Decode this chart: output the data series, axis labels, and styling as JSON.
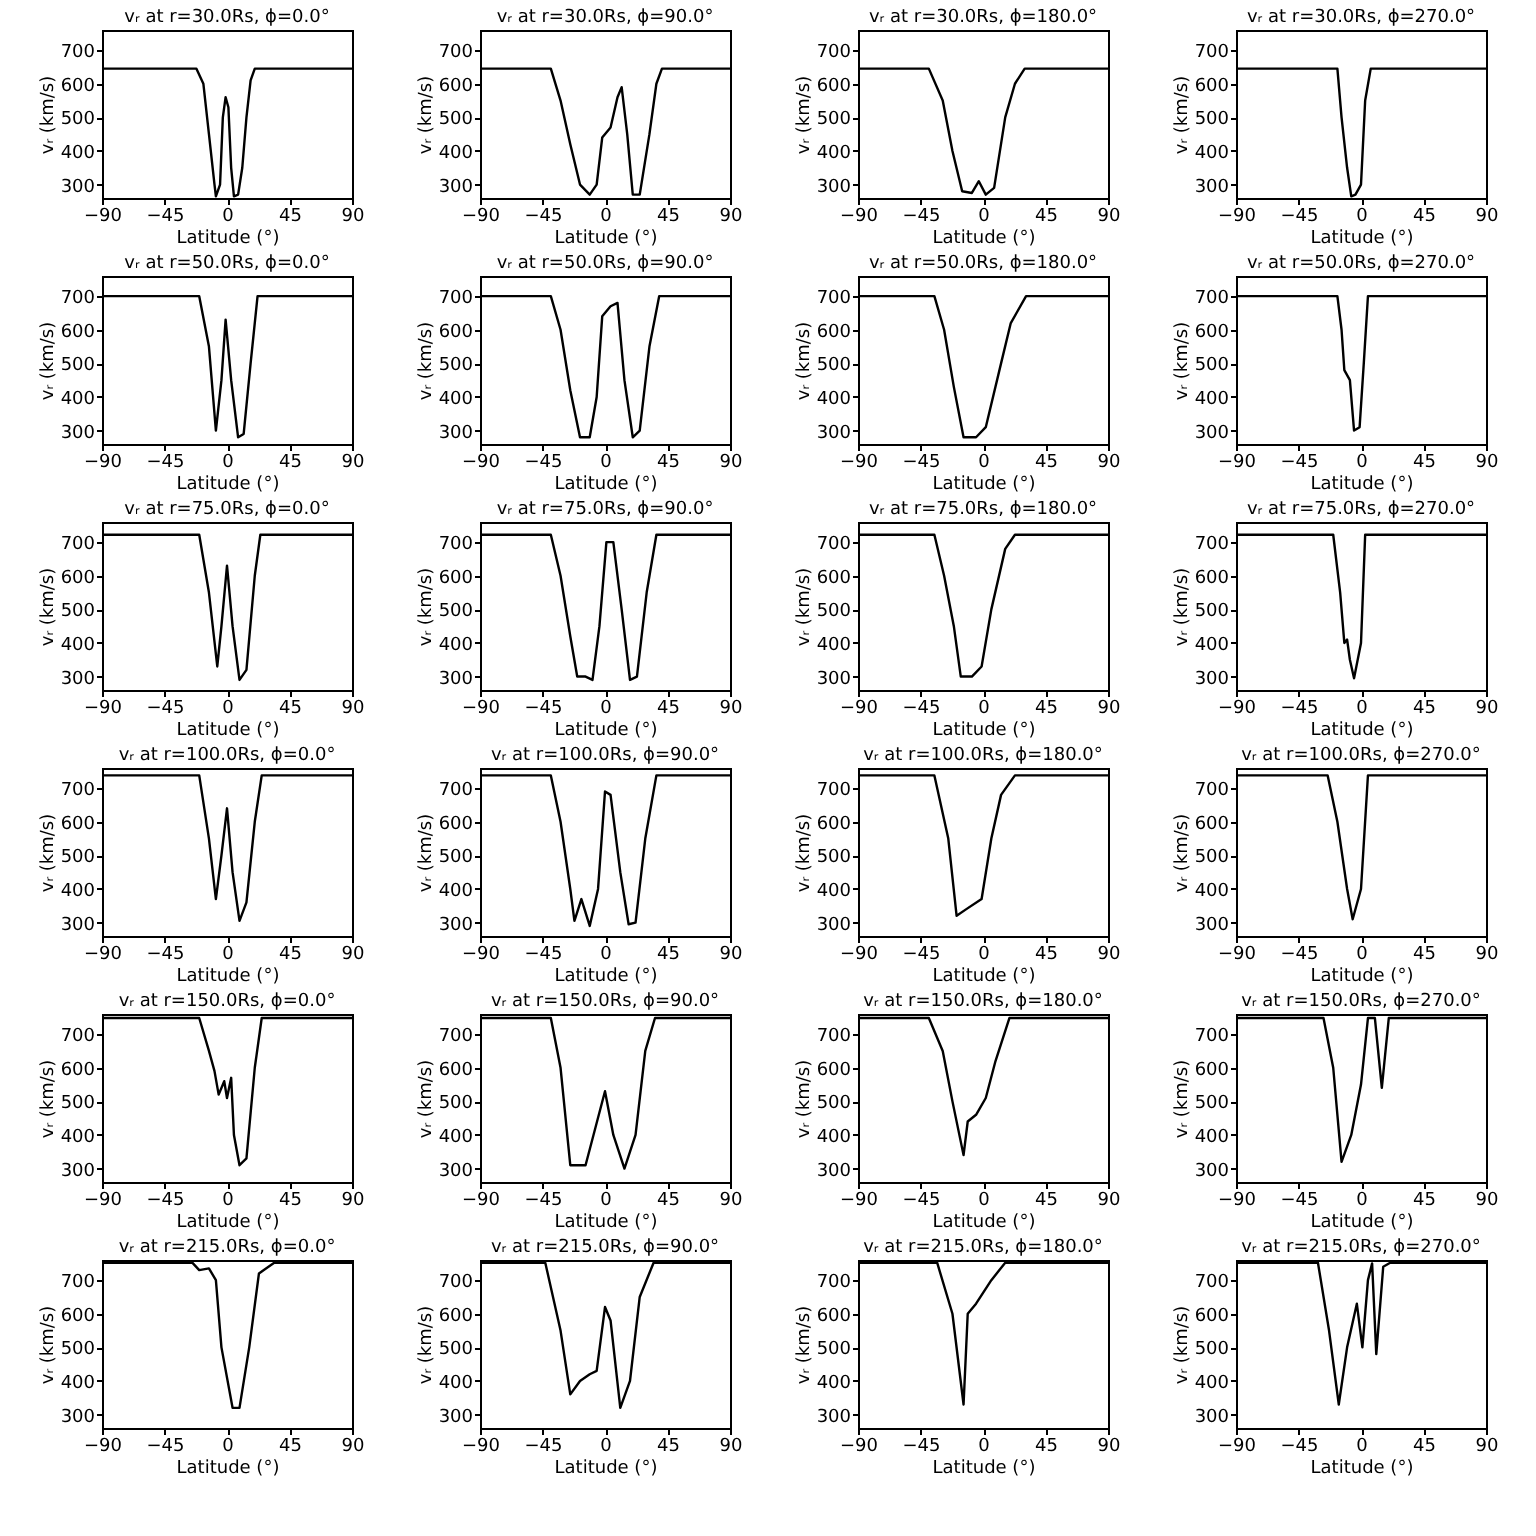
{
  "chart_data": [
    {
      "type": "line",
      "title": "vᵣ at r=30.0Rs, ϕ=0.0°",
      "xlabel": "Latitude (°)",
      "ylabel": "vᵣ (km/s)",
      "color": "#000000",
      "xlim": [
        -90,
        90
      ],
      "ylim": [
        260,
        760
      ],
      "xticks": [
        -90,
        -45,
        0,
        45,
        90
      ],
      "yticks": [
        300,
        400,
        500,
        600,
        700
      ],
      "x": [
        -90,
        -22,
        -17,
        -13,
        -9,
        -8,
        -5,
        -3,
        -1,
        1,
        3,
        5,
        8,
        11,
        14,
        17,
        20,
        90
      ],
      "values": [
        645,
        645,
        600,
        450,
        300,
        265,
        300,
        500,
        560,
        530,
        350,
        265,
        270,
        350,
        500,
        610,
        645,
        645
      ]
    },
    {
      "type": "line",
      "title": "vᵣ at r=30.0Rs, ϕ=90.0°",
      "xlabel": "Latitude (°)",
      "ylabel": "vᵣ (km/s)",
      "color": "#000000",
      "xlim": [
        -90,
        90
      ],
      "ylim": [
        260,
        760
      ],
      "xticks": [
        -90,
        -45,
        0,
        45,
        90
      ],
      "yticks": [
        300,
        400,
        500,
        600,
        700
      ],
      "x": [
        -90,
        -39,
        -32,
        -25,
        -18,
        -11,
        -6,
        -2,
        4,
        9,
        12,
        16,
        20,
        25,
        32,
        37,
        41,
        90
      ],
      "values": [
        645,
        645,
        550,
        420,
        300,
        270,
        300,
        440,
        470,
        560,
        590,
        450,
        270,
        270,
        450,
        600,
        645,
        645
      ]
    },
    {
      "type": "line",
      "title": "vᵣ at r=30.0Rs, ϕ=180.0°",
      "xlabel": "Latitude (°)",
      "ylabel": "vᵣ (km/s)",
      "color": "#000000",
      "xlim": [
        -90,
        90
      ],
      "ylim": [
        260,
        760
      ],
      "xticks": [
        -90,
        -45,
        0,
        45,
        90
      ],
      "yticks": [
        300,
        400,
        500,
        600,
        700
      ],
      "x": [
        -90,
        -39,
        -29,
        -22,
        -15,
        -8,
        -3,
        2,
        8,
        16,
        23,
        30,
        90
      ],
      "values": [
        645,
        645,
        550,
        400,
        280,
        275,
        310,
        270,
        290,
        500,
        600,
        645,
        645
      ]
    },
    {
      "type": "line",
      "title": "vᵣ at r=30.0Rs, ϕ=270.0°",
      "xlabel": "Latitude (°)",
      "ylabel": "vᵣ (km/s)",
      "color": "#000000",
      "xlim": [
        -90,
        90
      ],
      "ylim": [
        260,
        760
      ],
      "xticks": [
        -90,
        -45,
        0,
        45,
        90
      ],
      "yticks": [
        300,
        400,
        500,
        600,
        700
      ],
      "x": [
        -90,
        -17,
        -14,
        -10,
        -7,
        -4,
        0,
        3,
        7,
        90
      ],
      "values": [
        645,
        645,
        500,
        350,
        265,
        270,
        300,
        550,
        645,
        645
      ]
    },
    {
      "type": "line",
      "title": "vᵣ at r=50.0Rs, ϕ=0.0°",
      "xlabel": "Latitude (°)",
      "ylabel": "vᵣ (km/s)",
      "color": "#000000",
      "xlim": [
        -90,
        90
      ],
      "ylim": [
        260,
        760
      ],
      "xticks": [
        -90,
        -45,
        0,
        45,
        90
      ],
      "yticks": [
        300,
        400,
        500,
        600,
        700
      ],
      "x": [
        -90,
        -20,
        -13,
        -8,
        -4,
        -1,
        3,
        8,
        12,
        17,
        22,
        90
      ],
      "values": [
        700,
        700,
        550,
        300,
        450,
        630,
        450,
        280,
        290,
        500,
        700,
        700
      ]
    },
    {
      "type": "line",
      "title": "vᵣ at r=50.0Rs, ϕ=90.0°",
      "xlabel": "Latitude (°)",
      "ylabel": "vᵣ (km/s)",
      "color": "#000000",
      "xlim": [
        -90,
        90
      ],
      "ylim": [
        260,
        760
      ],
      "xticks": [
        -90,
        -45,
        0,
        45,
        90
      ],
      "yticks": [
        300,
        400,
        500,
        600,
        700
      ],
      "x": [
        -90,
        -39,
        -32,
        -25,
        -18,
        -11,
        -6,
        -2,
        4,
        9,
        14,
        20,
        25,
        32,
        39,
        90
      ],
      "values": [
        700,
        700,
        600,
        420,
        280,
        280,
        400,
        640,
        670,
        680,
        450,
        280,
        300,
        550,
        700,
        700
      ]
    },
    {
      "type": "line",
      "title": "vᵣ at r=50.0Rs, ϕ=180.0°",
      "xlabel": "Latitude (°)",
      "ylabel": "vᵣ (km/s)",
      "color": "#000000",
      "xlim": [
        -90,
        90
      ],
      "ylim": [
        260,
        760
      ],
      "xticks": [
        -90,
        -45,
        0,
        45,
        90
      ],
      "yticks": [
        300,
        400,
        500,
        600,
        700
      ],
      "x": [
        -90,
        -35,
        -28,
        -21,
        -14,
        -5,
        2,
        13,
        20,
        31,
        90
      ],
      "values": [
        700,
        700,
        600,
        430,
        280,
        280,
        310,
        500,
        620,
        700,
        700
      ]
    },
    {
      "type": "line",
      "title": "vᵣ at r=50.0Rs, ϕ=270.0°",
      "xlabel": "Latitude (°)",
      "ylabel": "vᵣ (km/s)",
      "color": "#000000",
      "xlim": [
        -90,
        90
      ],
      "ylim": [
        260,
        760
      ],
      "xticks": [
        -90,
        -45,
        0,
        45,
        90
      ],
      "yticks": [
        300,
        400,
        500,
        600,
        700
      ],
      "x": [
        -90,
        -17,
        -14,
        -12,
        -8,
        -5,
        -1,
        2,
        5,
        90
      ],
      "values": [
        700,
        700,
        600,
        480,
        450,
        300,
        310,
        500,
        700,
        700
      ]
    },
    {
      "type": "line",
      "title": "vᵣ at r=75.0Rs, ϕ=0.0°",
      "xlabel": "Latitude (°)",
      "ylabel": "vᵣ (km/s)",
      "color": "#000000",
      "xlim": [
        -90,
        90
      ],
      "ylim": [
        260,
        760
      ],
      "xticks": [
        -90,
        -45,
        0,
        45,
        90
      ],
      "yticks": [
        300,
        400,
        500,
        600,
        700
      ],
      "x": [
        -90,
        -20,
        -13,
        -7,
        -4,
        0,
        4,
        9,
        14,
        20,
        24,
        90
      ],
      "values": [
        722,
        722,
        550,
        330,
        450,
        630,
        450,
        290,
        320,
        600,
        722,
        722
      ]
    },
    {
      "type": "line",
      "title": "vᵣ at r=75.0Rs, ϕ=90.0°",
      "xlabel": "Latitude (°)",
      "ylabel": "vᵣ (km/s)",
      "color": "#000000",
      "xlim": [
        -90,
        90
      ],
      "ylim": [
        260,
        760
      ],
      "xticks": [
        -90,
        -45,
        0,
        45,
        90
      ],
      "yticks": [
        300,
        400,
        500,
        600,
        700
      ],
      "x": [
        -90,
        -39,
        -32,
        -25,
        -20,
        -14,
        -9,
        -4,
        1,
        6,
        12,
        18,
        23,
        30,
        37,
        90
      ],
      "values": [
        722,
        722,
        600,
        420,
        300,
        300,
        290,
        450,
        700,
        700,
        500,
        290,
        300,
        550,
        722,
        722
      ]
    },
    {
      "type": "line",
      "title": "vᵣ at r=75.0Rs, ϕ=180.0°",
      "xlabel": "Latitude (°)",
      "ylabel": "vᵣ (km/s)",
      "color": "#000000",
      "xlim": [
        -90,
        90
      ],
      "ylim": [
        260,
        760
      ],
      "xticks": [
        -90,
        -45,
        0,
        45,
        90
      ],
      "yticks": [
        300,
        400,
        500,
        600,
        700
      ],
      "x": [
        -90,
        -35,
        -28,
        -21,
        -16,
        -8,
        -1,
        6,
        16,
        23,
        90
      ],
      "values": [
        722,
        722,
        600,
        450,
        300,
        300,
        330,
        500,
        680,
        722,
        722
      ]
    },
    {
      "type": "line",
      "title": "vᵣ at r=75.0Rs, ϕ=270.0°",
      "xlabel": "Latitude (°)",
      "ylabel": "vᵣ (km/s)",
      "color": "#000000",
      "xlim": [
        -90,
        90
      ],
      "ylim": [
        260,
        760
      ],
      "xticks": [
        -90,
        -45,
        0,
        45,
        90
      ],
      "yticks": [
        300,
        400,
        500,
        600,
        700
      ],
      "x": [
        -90,
        -20,
        -15,
        -12,
        -10,
        -8,
        -5,
        0,
        3,
        90
      ],
      "values": [
        722,
        722,
        550,
        400,
        410,
        350,
        295,
        400,
        722,
        722
      ]
    },
    {
      "type": "line",
      "title": "vᵣ at r=100.0Rs, ϕ=0.0°",
      "xlabel": "Latitude (°)",
      "ylabel": "vᵣ (km/s)",
      "color": "#000000",
      "xlim": [
        -90,
        90
      ],
      "ylim": [
        260,
        760
      ],
      "xticks": [
        -90,
        -45,
        0,
        45,
        90
      ],
      "yticks": [
        300,
        400,
        500,
        600,
        700
      ],
      "x": [
        -90,
        -20,
        -13,
        -8,
        -4,
        0,
        4,
        9,
        14,
        20,
        25,
        90
      ],
      "values": [
        738,
        738,
        550,
        370,
        500,
        640,
        450,
        305,
        360,
        600,
        738,
        738
      ]
    },
    {
      "type": "line",
      "title": "vᵣ at r=100.0Rs, ϕ=90.0°",
      "xlabel": "Latitude (°)",
      "ylabel": "vᵣ (km/s)",
      "color": "#000000",
      "xlim": [
        -90,
        90
      ],
      "ylim": [
        260,
        760
      ],
      "xticks": [
        -90,
        -45,
        0,
        45,
        90
      ],
      "yticks": [
        300,
        400,
        500,
        600,
        700
      ],
      "x": [
        -90,
        -39,
        -32,
        -25,
        -22,
        -17,
        -11,
        -5,
        0,
        4,
        11,
        17,
        22,
        29,
        37,
        90
      ],
      "values": [
        738,
        738,
        600,
        400,
        305,
        370,
        290,
        400,
        690,
        680,
        450,
        295,
        300,
        550,
        738,
        738
      ]
    },
    {
      "type": "line",
      "title": "vᵣ at r=100.0Rs, ϕ=180.0°",
      "xlabel": "Latitude (°)",
      "ylabel": "vᵣ (km/s)",
      "color": "#000000",
      "xlim": [
        -90,
        90
      ],
      "ylim": [
        260,
        760
      ],
      "xticks": [
        -90,
        -45,
        0,
        45,
        90
      ],
      "yticks": [
        300,
        400,
        500,
        600,
        700
      ],
      "x": [
        -90,
        -35,
        -25,
        -19,
        -12,
        -1,
        6,
        13,
        23,
        90
      ],
      "values": [
        738,
        738,
        550,
        320,
        340,
        370,
        550,
        680,
        738,
        738
      ]
    },
    {
      "type": "line",
      "title": "vᵣ at r=100.0Rs, ϕ=270.0°",
      "xlabel": "Latitude (°)",
      "ylabel": "vᵣ (km/s)",
      "color": "#000000",
      "xlim": [
        -90,
        90
      ],
      "ylim": [
        260,
        760
      ],
      "xticks": [
        -90,
        -45,
        0,
        45,
        90
      ],
      "yticks": [
        300,
        400,
        500,
        600,
        700
      ],
      "x": [
        -90,
        -24,
        -17,
        -10,
        -6,
        0,
        5,
        90
      ],
      "values": [
        738,
        738,
        600,
        400,
        310,
        400,
        738,
        738
      ]
    },
    {
      "type": "line",
      "title": "vᵣ at r=150.0Rs, ϕ=0.0°",
      "xlabel": "Latitude (°)",
      "ylabel": "vᵣ (km/s)",
      "color": "#000000",
      "xlim": [
        -90,
        90
      ],
      "ylim": [
        260,
        760
      ],
      "xticks": [
        -90,
        -45,
        0,
        45,
        90
      ],
      "yticks": [
        300,
        400,
        500,
        600,
        700
      ],
      "x": [
        -90,
        -20,
        -13,
        -9,
        -6,
        -2,
        0,
        3,
        5,
        9,
        14,
        20,
        25,
        90
      ],
      "values": [
        748,
        748,
        650,
        590,
        520,
        560,
        510,
        570,
        400,
        310,
        330,
        600,
        748,
        748
      ]
    },
    {
      "type": "line",
      "title": "vᵣ at r=150.0Rs, ϕ=90.0°",
      "xlabel": "Latitude (°)",
      "ylabel": "vᵣ (km/s)",
      "color": "#000000",
      "xlim": [
        -90,
        90
      ],
      "ylim": [
        260,
        760
      ],
      "xticks": [
        -90,
        -45,
        0,
        45,
        90
      ],
      "yticks": [
        300,
        400,
        500,
        600,
        700
      ],
      "x": [
        -90,
        -39,
        -32,
        -25,
        -14,
        -7,
        0,
        6,
        14,
        22,
        29,
        36,
        90
      ],
      "values": [
        748,
        748,
        600,
        310,
        310,
        420,
        530,
        400,
        300,
        400,
        650,
        748,
        748
      ]
    },
    {
      "type": "line",
      "title": "vᵣ at r=150.0Rs, ϕ=180.0°",
      "xlabel": "Latitude (°)",
      "ylabel": "vᵣ (km/s)",
      "color": "#000000",
      "xlim": [
        -90,
        90
      ],
      "ylim": [
        260,
        760
      ],
      "xticks": [
        -90,
        -45,
        0,
        45,
        90
      ],
      "yticks": [
        300,
        400,
        500,
        600,
        700
      ],
      "x": [
        -90,
        -39,
        -29,
        -22,
        -14,
        -11,
        -5,
        2,
        9,
        19,
        90
      ],
      "values": [
        748,
        748,
        650,
        500,
        340,
        440,
        460,
        510,
        620,
        748,
        748
      ]
    },
    {
      "type": "line",
      "title": "vᵣ at r=150.0Rs, ϕ=270.0°",
      "xlabel": "Latitude (°)",
      "ylabel": "vᵣ (km/s)",
      "color": "#000000",
      "xlim": [
        -90,
        90
      ],
      "ylim": [
        260,
        760
      ],
      "xticks": [
        -90,
        -45,
        0,
        45,
        90
      ],
      "yticks": [
        300,
        400,
        500,
        600,
        700
      ],
      "x": [
        -90,
        -27,
        -20,
        -14,
        -7,
        0,
        5,
        10,
        15,
        20,
        90
      ],
      "values": [
        748,
        748,
        600,
        320,
        400,
        550,
        748,
        748,
        540,
        748,
        748
      ]
    },
    {
      "type": "line",
      "title": "vᵣ at r=215.0Rs, ϕ=0.0°",
      "xlabel": "Latitude (°)",
      "ylabel": "vᵣ (km/s)",
      "color": "#000000",
      "xlim": [
        -90,
        90
      ],
      "ylim": [
        260,
        760
      ],
      "xticks": [
        -90,
        -45,
        0,
        45,
        90
      ],
      "yticks": [
        300,
        400,
        500,
        600,
        700
      ],
      "x": [
        -90,
        -25,
        -20,
        -13,
        -8,
        -4,
        4,
        9,
        16,
        23,
        34,
        90
      ],
      "values": [
        752,
        752,
        730,
        735,
        700,
        500,
        320,
        320,
        500,
        720,
        752,
        752
      ]
    },
    {
      "type": "line",
      "title": "vᵣ at r=215.0Rs, ϕ=90.0°",
      "xlabel": "Latitude (°)",
      "ylabel": "vᵣ (km/s)",
      "color": "#000000",
      "xlim": [
        -90,
        90
      ],
      "ylim": [
        260,
        760
      ],
      "xticks": [
        -90,
        -45,
        0,
        45,
        90
      ],
      "yticks": [
        300,
        400,
        500,
        600,
        700
      ],
      "x": [
        -90,
        -43,
        -32,
        -25,
        -18,
        -11,
        -6,
        0,
        4,
        11,
        18,
        25,
        35,
        90
      ],
      "values": [
        752,
        752,
        550,
        360,
        400,
        420,
        430,
        620,
        580,
        320,
        400,
        650,
        752,
        752
      ]
    },
    {
      "type": "line",
      "title": "vᵣ at r=215.0Rs, ϕ=180.0°",
      "xlabel": "Latitude (°)",
      "ylabel": "vᵣ (km/s)",
      "color": "#000000",
      "xlim": [
        -90,
        90
      ],
      "ylim": [
        260,
        760
      ],
      "xticks": [
        -90,
        -45,
        0,
        45,
        90
      ],
      "yticks": [
        300,
        400,
        500,
        600,
        700
      ],
      "x": [
        -90,
        -33,
        -22,
        -14,
        -11,
        -5,
        6,
        16,
        90
      ],
      "values": [
        752,
        752,
        600,
        330,
        600,
        630,
        700,
        752,
        752
      ]
    },
    {
      "type": "line",
      "title": "vᵣ at r=215.0Rs, ϕ=270.0°",
      "xlabel": "Latitude (°)",
      "ylabel": "vᵣ (km/s)",
      "color": "#000000",
      "xlim": [
        -90,
        90
      ],
      "ylim": [
        260,
        760
      ],
      "xticks": [
        -90,
        -45,
        0,
        45,
        90
      ],
      "yticks": [
        300,
        400,
        500,
        600,
        700
      ],
      "x": [
        -90,
        -31,
        -23,
        -16,
        -10,
        -3,
        1,
        5,
        8,
        11,
        16,
        21,
        90
      ],
      "values": [
        752,
        752,
        550,
        330,
        500,
        630,
        500,
        700,
        750,
        480,
        740,
        752,
        752
      ]
    }
  ]
}
